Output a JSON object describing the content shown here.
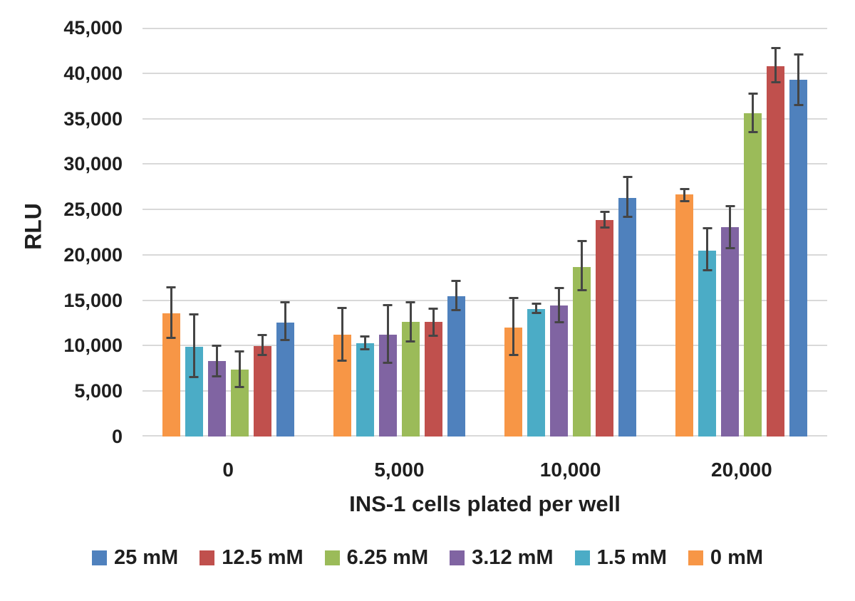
{
  "chart_data": {
    "type": "bar",
    "title": "",
    "ylabel": "RLU",
    "xlabel": "INS-1 cells plated per well",
    "ylim": [
      0,
      45000
    ],
    "ytick_step": 5000,
    "ytick_labels": [
      "0",
      "5,000",
      "10,000",
      "15,000",
      "20,000",
      "25,000",
      "30,000",
      "35,000",
      "40,000",
      "45,000"
    ],
    "categories": [
      "0",
      "5,000",
      "10,000",
      "20,000"
    ],
    "grid": true,
    "legend_position": "bottom",
    "gridline_color": "#d9d9d9",
    "error_bar_color": "#454545",
    "series": [
      {
        "name": "0 mM",
        "color": "#F79646",
        "values": [
          13550,
          11200,
          12000,
          26650
        ],
        "err_hi": [
          16550,
          14300,
          15350,
          27350
        ],
        "err_lo": [
          10750,
          8200,
          8850,
          25800
        ]
      },
      {
        "name": "1.5 mM",
        "color": "#4BACC6",
        "values": [
          9900,
          10250,
          14050,
          20500
        ],
        "err_hi": [
          13550,
          11100,
          14750,
          23050
        ],
        "err_lo": [
          6450,
          9450,
          13500,
          18200
        ]
      },
      {
        "name": "3.12 mM",
        "color": "#8064A2",
        "values": [
          8300,
          11200,
          14400,
          23050
        ],
        "err_hi": [
          10150,
          14600,
          16450,
          25450
        ],
        "err_lo": [
          6500,
          8000,
          12500,
          20600
        ]
      },
      {
        "name": "6.25 mM",
        "color": "#9BBB59",
        "values": [
          7350,
          12650,
          18650,
          35600
        ],
        "err_hi": [
          9500,
          14900,
          21650,
          37900
        ],
        "err_lo": [
          5350,
          10350,
          16000,
          33400
        ]
      },
      {
        "name": "12.5 mM",
        "color": "#C0504D",
        "values": [
          9950,
          12600,
          23850,
          40800
        ],
        "err_hi": [
          11300,
          14200,
          24850,
          42850
        ],
        "err_lo": [
          8850,
          10950,
          22900,
          38850
        ]
      },
      {
        "name": "25 mM",
        "color": "#4F81BD",
        "values": [
          12550,
          15450,
          26300,
          39250
        ],
        "err_hi": [
          14900,
          17250,
          28700,
          42200
        ],
        "err_lo": [
          10500,
          13800,
          24050,
          36350
        ]
      }
    ],
    "legend": [
      {
        "label": "25 mM",
        "color": "#4F81BD"
      },
      {
        "label": "12.5 mM",
        "color": "#C0504D"
      },
      {
        "label": "6.25 mM",
        "color": "#9BBB59"
      },
      {
        "label": "3.12 mM",
        "color": "#8064A2"
      },
      {
        "label": "1.5 mM",
        "color": "#4BACC6"
      },
      {
        "label": "0 mM",
        "color": "#F79646"
      }
    ]
  }
}
